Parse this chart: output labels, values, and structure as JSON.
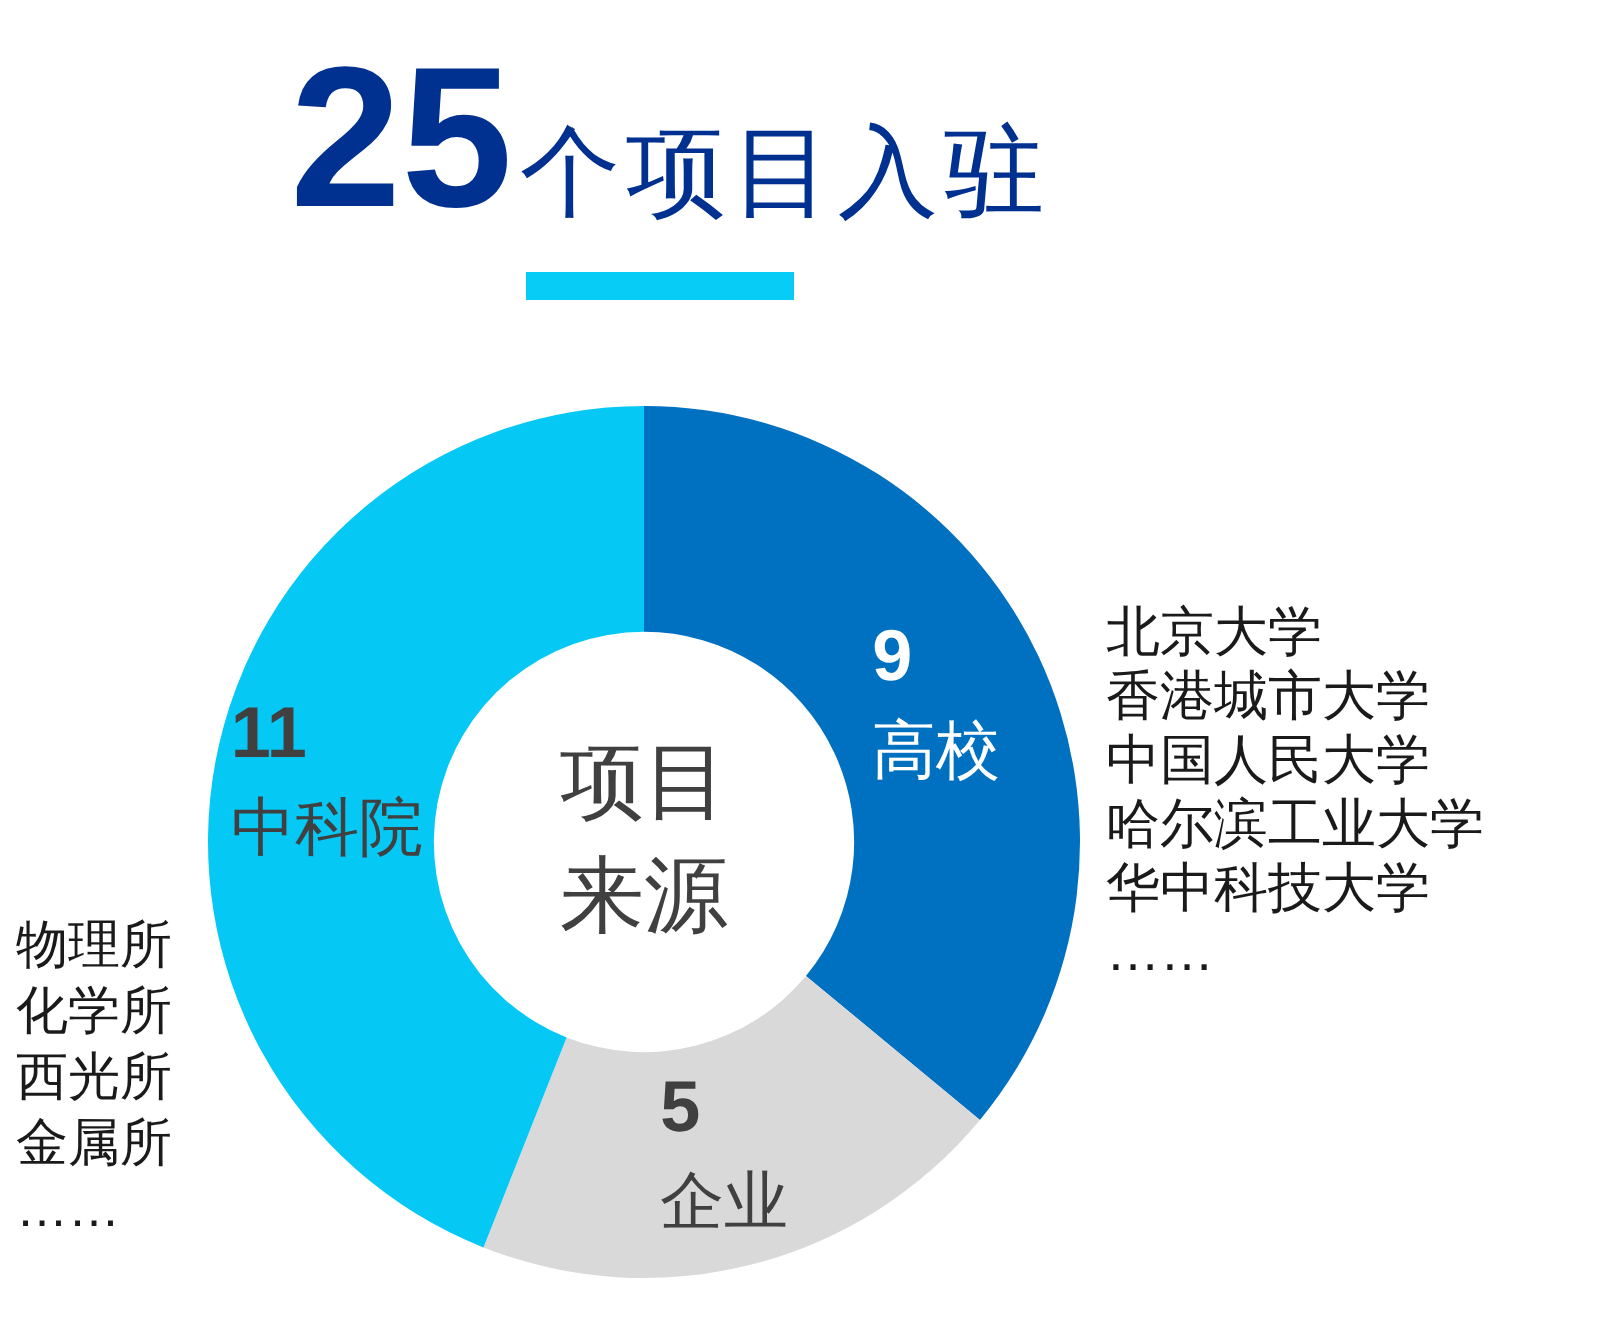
{
  "chart_data": {
    "type": "donut",
    "title": "**25**个项目入驻",
    "categories": [
      "高校",
      "企业",
      "中科院"
    ],
    "values": [
      9,
      5,
      11
    ],
    "colors": [
      "#0070c0",
      "#d9d9d9",
      "#05c8f5"
    ],
    "data_labels": true,
    "annotations": [
      "项目来源",
      "北京大学",
      "香港城市大学",
      "中国人民大学",
      "哈尔滨工业大学",
      "华中科技大学",
      "……",
      "物理所",
      "化学所",
      "西光所",
      "金属所",
      "……"
    ]
  }
}
